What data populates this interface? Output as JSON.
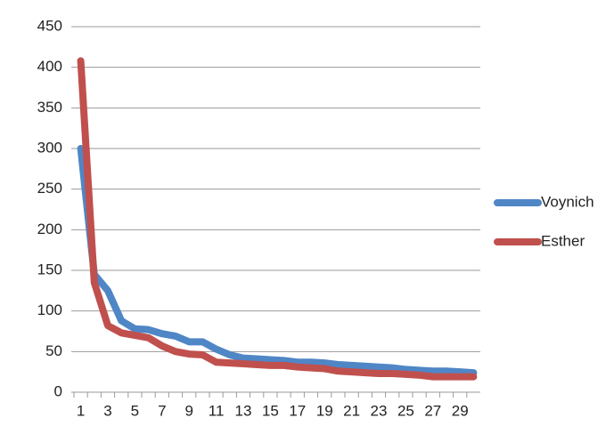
{
  "chart_data": {
    "type": "line",
    "categories": [
      "1",
      null,
      "3",
      null,
      "5",
      null,
      "7",
      null,
      "9",
      null,
      "11",
      null,
      "13",
      null,
      "15",
      null,
      "17",
      null,
      "19",
      null,
      "21",
      null,
      "23",
      null,
      "25",
      null,
      "27",
      null,
      "29",
      null
    ],
    "series": [
      {
        "name": "Voynich",
        "color": "#4f86c6",
        "values": [
          300,
          145,
          125,
          88,
          78,
          77,
          72,
          69,
          62,
          62,
          53,
          46,
          42,
          41,
          40,
          39,
          37,
          37,
          36,
          34,
          33,
          32,
          31,
          30,
          28,
          27,
          26,
          26,
          25,
          24
        ]
      },
      {
        "name": "Esther",
        "color": "#c0504d",
        "values": [
          408,
          135,
          82,
          73,
          70,
          67,
          57,
          50,
          47,
          46,
          37,
          36,
          35,
          34,
          33,
          33,
          31,
          30,
          29,
          26,
          25,
          24,
          23,
          23,
          22,
          21,
          19,
          19,
          19,
          19
        ]
      }
    ],
    "ylim": [
      0,
      450
    ],
    "yticks": [
      0,
      50,
      100,
      150,
      200,
      250,
      300,
      350,
      400,
      450
    ],
    "grid": true,
    "legend": "right"
  }
}
